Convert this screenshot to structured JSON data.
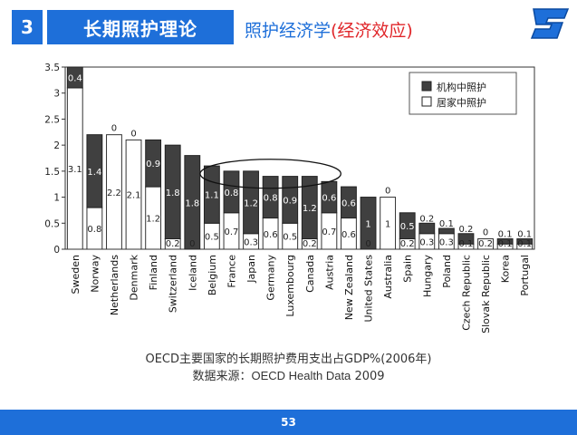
{
  "header": {
    "section_number": "3",
    "section_title": "长期照护理论",
    "subtitle_main": "照护经济学",
    "subtitle_paren": "(经济效应)"
  },
  "caption": {
    "line1": "OECD主要国家的长期照护费用支出占GDP%(2006年)",
    "line2_prefix": "数据来源：",
    "line2_source": "OECD Health Data",
    "line2_year": "2009"
  },
  "footer": {
    "page_number": "53"
  },
  "colors": {
    "accent": "#1e6fd9",
    "paren": "#e0262a",
    "institutional": "#404040",
    "home": "#ffffff"
  },
  "chart_data": {
    "type": "bar",
    "stacked": true,
    "ylim": [
      0,
      3.5
    ],
    "yticks": [
      "0",
      "0.5",
      "1",
      "1.5",
      "2",
      "2.5",
      "3",
      "3.5"
    ],
    "legend_position": "top-right",
    "categories": [
      "Sweden",
      "Norway",
      "Netherlands",
      "Denmark",
      "Finland",
      "Switzerland",
      "Iceland",
      "Belgium",
      "France",
      "Japan",
      "Germany",
      "Luxembourg",
      "Canada",
      "Austria",
      "New Zealand",
      "United States",
      "Australia",
      "Spain",
      "Hungary",
      "Poland",
      "Czech Republic",
      "Slovak Republic",
      "Korea",
      "Portugal"
    ],
    "series": [
      {
        "name": "居家中照护",
        "color": "#ffffff",
        "values": [
          3.1,
          0.8,
          2.2,
          2.1,
          1.2,
          0.2,
          0,
          0.5,
          0.7,
          0.3,
          0.6,
          0.5,
          0.2,
          0.7,
          0.6,
          0,
          1,
          0.2,
          0.3,
          0.3,
          0.1,
          0.2,
          0.1,
          0.1
        ],
        "labels": [
          "3.1",
          "0.8",
          "2.2",
          "2.1",
          "1.2",
          "0.2",
          "0",
          "0.5",
          "0.7",
          "0.3",
          "0.6",
          "0.5",
          "0.2",
          "0.7",
          "0.6",
          "0",
          "1",
          "0.2",
          "0.3",
          "0.3",
          "0.1",
          "0.2",
          "0.1",
          "0.1"
        ]
      },
      {
        "name": "机构中照护",
        "color": "#404040",
        "values": [
          0.4,
          1.4,
          0,
          0,
          0.9,
          1.8,
          1.8,
          1.1,
          0.8,
          1.2,
          0.8,
          0.9,
          1.2,
          0.6,
          0.6,
          1,
          0,
          0.5,
          0.2,
          0.1,
          0.2,
          0,
          0.1,
          0.1
        ],
        "labels": [
          "0.4",
          "1.4",
          "0",
          "0",
          "0.9",
          "1.8",
          "1.8",
          "1.1",
          "0.8",
          "1.2",
          "0.8",
          "0.9",
          "1.2",
          "0.6",
          "0.6",
          "1",
          "0",
          "0.5",
          "0.2",
          "0.1",
          "0.2",
          "0",
          "0.1",
          "0.1"
        ]
      }
    ]
  }
}
